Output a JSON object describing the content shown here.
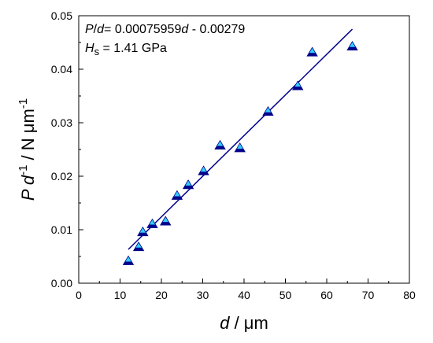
{
  "chart_data": {
    "type": "scatter",
    "xlabel": {
      "italic": "d",
      "rest": " / μm"
    },
    "ylabel": {
      "italic1": "P",
      "italic2": " d",
      "sup1": "-1",
      "rest": " / N μm",
      "sup2": "-1"
    },
    "xlim": [
      0,
      80
    ],
    "ylim": [
      0.0,
      0.05
    ],
    "x_ticks": [
      "0",
      "10",
      "20",
      "30",
      "40",
      "50",
      "60",
      "70",
      "80"
    ],
    "y_ticks": [
      "0.00",
      "0.01",
      "0.02",
      "0.03",
      "0.04",
      "0.05"
    ],
    "annotations": {
      "equation": {
        "italic_a": "P",
        "sep": "/",
        "italic_b": "d",
        "eq": "= 0.00075959",
        "italic_c": "d",
        "tail": " - 0.00279"
      },
      "hardness": {
        "italic": "H",
        "sub": "s",
        "tail": " = 1.41 GPa"
      }
    },
    "marker_colors": {
      "top": "#33ccff",
      "bottom": "#00008b"
    },
    "line_color": "#00008b",
    "points": [
      {
        "x": 12.0,
        "y": 0.0042
      },
      {
        "x": 14.5,
        "y": 0.0068
      },
      {
        "x": 15.5,
        "y": 0.0096
      },
      {
        "x": 17.8,
        "y": 0.0111
      },
      {
        "x": 21.0,
        "y": 0.0116
      },
      {
        "x": 23.8,
        "y": 0.0164
      },
      {
        "x": 26.5,
        "y": 0.0184
      },
      {
        "x": 30.2,
        "y": 0.021
      },
      {
        "x": 34.2,
        "y": 0.0258
      },
      {
        "x": 39.0,
        "y": 0.0253
      },
      {
        "x": 45.8,
        "y": 0.0321
      },
      {
        "x": 53.0,
        "y": 0.0369
      },
      {
        "x": 56.5,
        "y": 0.0432
      },
      {
        "x": 66.2,
        "y": 0.0443
      }
    ],
    "fit": {
      "slope": 0.00075959,
      "intercept": -0.00279,
      "x_range": [
        12,
        66.2
      ]
    }
  }
}
